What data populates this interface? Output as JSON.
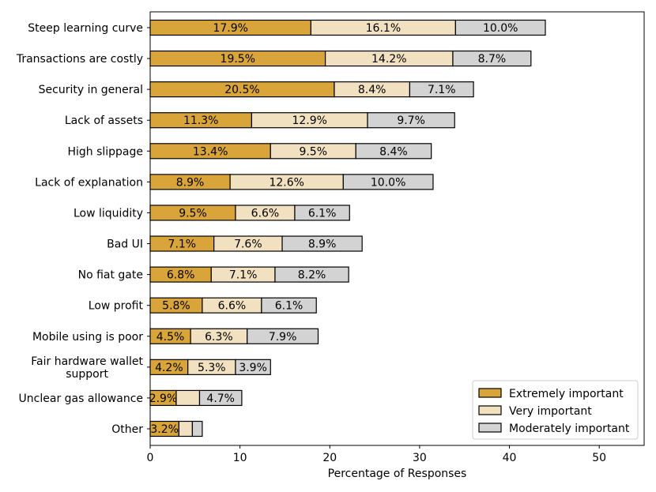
{
  "chart_data": {
    "type": "bar",
    "orientation": "horizontal",
    "stacked": true,
    "title": "",
    "xlabel": "Percentage of Responses",
    "ylabel": "",
    "xlim": [
      0,
      55
    ],
    "xticks": [
      0,
      10,
      20,
      30,
      40,
      50
    ],
    "grid": false,
    "legend_position": "bottom-right",
    "categories": [
      "Steep learning curve",
      "Transactions are costly",
      "Security in general",
      "Lack of assets",
      "High slippage",
      "Lack of explanation",
      "Low liquidity",
      "Bad UI",
      "No fiat gate",
      "Low profit",
      "Mobile using is poor",
      "Fair hardware wallet\nsupport",
      "Unclear gas allowance",
      "Other"
    ],
    "series": [
      {
        "name": "Extremely important",
        "color": "#d9a53a",
        "values": [
          17.9,
          19.5,
          20.5,
          11.3,
          13.4,
          8.9,
          9.5,
          7.1,
          6.8,
          5.8,
          4.5,
          4.2,
          2.9,
          3.2
        ],
        "labels": [
          "17.9%",
          "19.5%",
          "20.5%",
          "11.3%",
          "13.4%",
          "8.9%",
          "9.5%",
          "7.1%",
          "6.8%",
          "5.8%",
          "4.5%",
          "4.2%",
          "2.9%",
          "3.2%"
        ]
      },
      {
        "name": "Very important",
        "color": "#f1e1c0",
        "values": [
          16.1,
          14.2,
          8.4,
          12.9,
          9.5,
          12.6,
          6.6,
          7.6,
          7.1,
          6.6,
          6.3,
          5.3,
          2.6,
          1.5
        ],
        "labels": [
          "16.1%",
          "14.2%",
          "8.4%",
          "12.9%",
          "9.5%",
          "12.6%",
          "6.6%",
          "7.6%",
          "7.1%",
          "6.6%",
          "6.3%",
          "5.3%",
          "",
          ""
        ]
      },
      {
        "name": "Moderately important",
        "color": "#d3d3d3",
        "values": [
          10.0,
          8.7,
          7.1,
          9.7,
          8.4,
          10.0,
          6.1,
          8.9,
          8.2,
          6.1,
          7.9,
          3.9,
          4.7,
          1.1
        ],
        "labels": [
          "10.0%",
          "8.7%",
          "7.1%",
          "9.7%",
          "8.4%",
          "10.0%",
          "6.1%",
          "8.9%",
          "8.2%",
          "6.1%",
          "7.9%",
          "3.9%",
          "4.7%",
          ""
        ]
      }
    ]
  }
}
